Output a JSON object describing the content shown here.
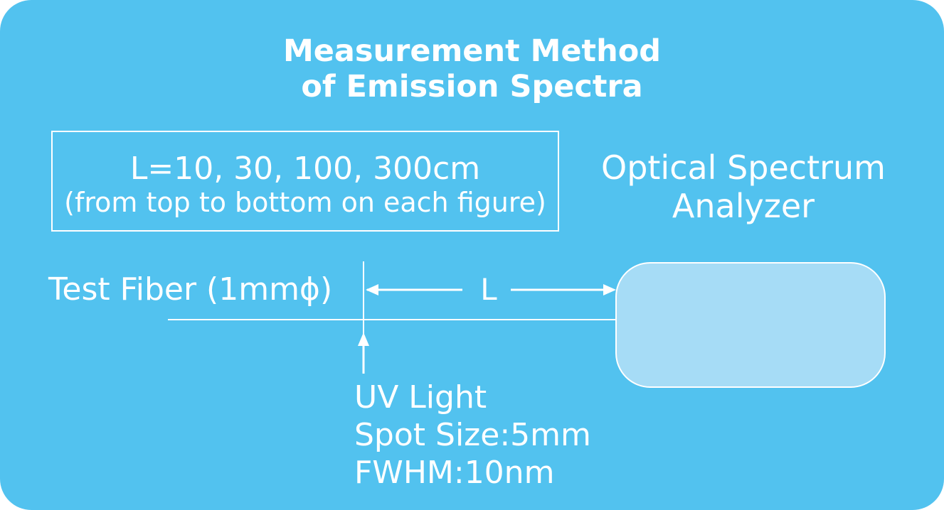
{
  "title": {
    "line1": "Measurement Method",
    "line2": "of Emission Spectra"
  },
  "info_box": {
    "line1": "L=10, 30, 100, 300cm",
    "line2": "(from top to bottom on each figure)"
  },
  "analyzer": {
    "line1": "Optical Spectrum",
    "line2": "Analyzer"
  },
  "fiber": {
    "label": "Test Fiber (1mmϕ)"
  },
  "distance": {
    "label": "L"
  },
  "uv_light": {
    "line1": "UV Light",
    "line2": "Spot Size:5mm",
    "line3": "FWHM:10nm"
  },
  "colors": {
    "background": "#52c2ef",
    "analyzer_fill": "#a6dcf6",
    "foreground": "#ffffff"
  }
}
